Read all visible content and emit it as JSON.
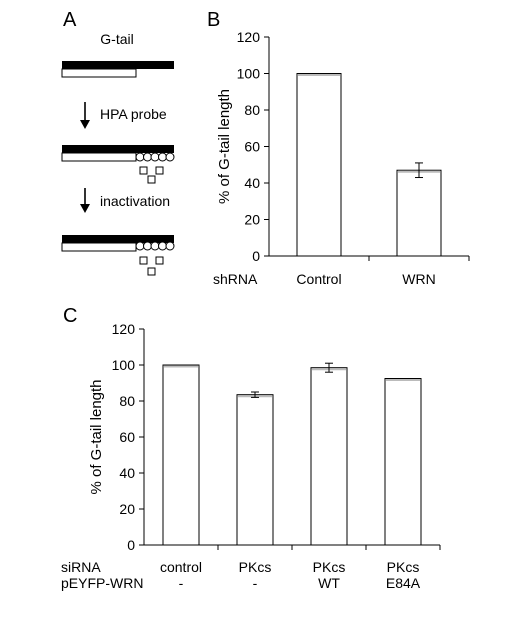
{
  "panels": {
    "a_label": "A",
    "b_label": "B",
    "c_label": "C"
  },
  "schematic": {
    "title": "G-tail",
    "step1": "HPA probe",
    "step2": "inactivation"
  },
  "chart_data": [
    {
      "type": "bar",
      "panel": "B",
      "ylabel": "% of G-tail length",
      "ylim": [
        0,
        120
      ],
      "yticks": [
        0,
        20,
        40,
        60,
        80,
        100,
        120
      ],
      "row_label": "shRNA",
      "categories": [
        "Control",
        "WRN"
      ],
      "values": [
        100,
        47
      ],
      "errors": [
        null,
        4
      ],
      "grid": false
    },
    {
      "type": "bar",
      "panel": "C",
      "ylabel": "% of G-tail length",
      "ylim": [
        0,
        120
      ],
      "yticks": [
        0,
        20,
        40,
        60,
        80,
        100,
        120
      ],
      "row_labels": [
        "siRNA",
        "pEYFP-WRN"
      ],
      "categories": [
        "control",
        "PKcs",
        "PKcs",
        "PKcs"
      ],
      "categories_row2": [
        "-",
        "-",
        "WT",
        "E84A"
      ],
      "values": [
        100,
        83.5,
        98.5,
        92.5
      ],
      "errors": [
        null,
        1.5,
        2.5,
        null
      ],
      "grid": false
    }
  ]
}
